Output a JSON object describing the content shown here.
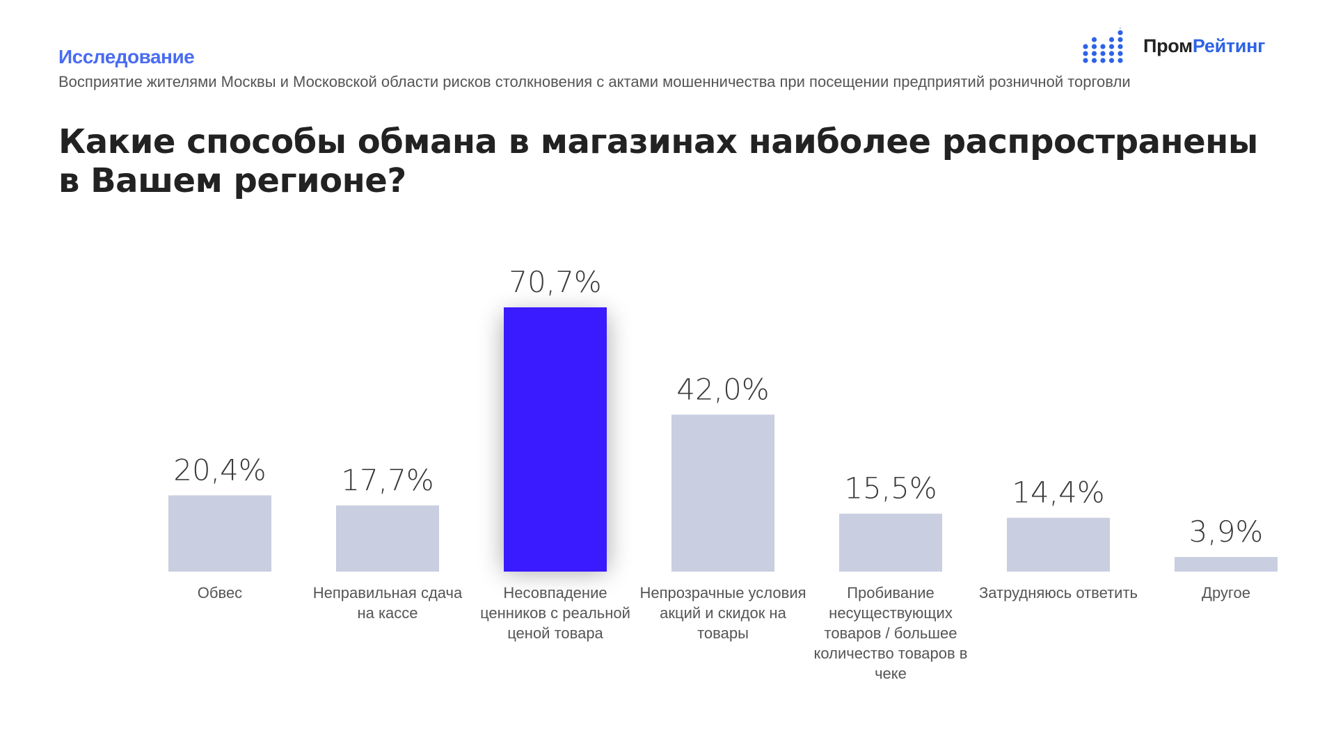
{
  "header": {
    "kicker": "Исследование",
    "subtitle": "Восприятие жителями Москвы и Московской области рисков столкновения с актами мошенничества при посещении предприятий розничной торговли",
    "logo_part1": "Пром",
    "logo_part2": "Рейтинг"
  },
  "chart_data": {
    "type": "bar",
    "title": "Какие способы обмана в магазинах наиболее распространены в Вашем регионе?",
    "categories": [
      "Обвес",
      "Неправильная сдача на кассе",
      "Несовпадение ценников с реальной ценой товара",
      "Непрозрачные условия акций и скидок на товары",
      "Пробивание несуществующих товаров / большее количество товаров в чеке",
      "Затрудняюсь ответить",
      "Другое"
    ],
    "values": [
      20.4,
      17.7,
      70.7,
      42.0,
      15.5,
      14.4,
      3.9
    ],
    "data_labels": [
      "20,4%",
      "17,7%",
      "70,7%",
      "42,0%",
      "15,5%",
      "14,4%",
      "3,9%"
    ],
    "highlight_index": 2,
    "colors": {
      "default": "#c9cee0",
      "highlight": "#3a1aff"
    },
    "unit": "%",
    "grid": false,
    "axes_visible": false
  }
}
